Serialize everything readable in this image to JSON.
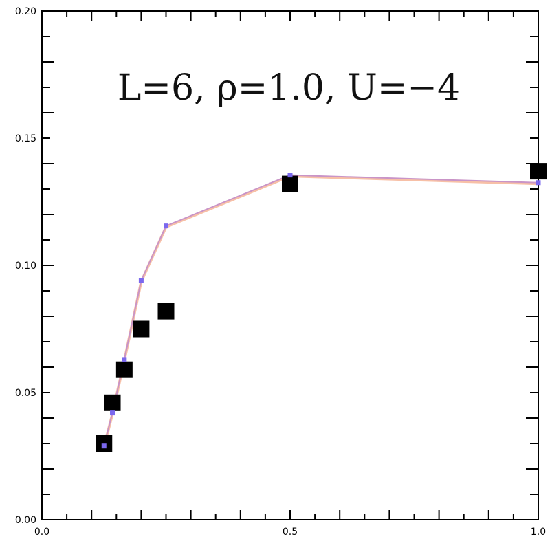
{
  "chart_data": {
    "type": "scatter",
    "title": "L=6,  ρ=1.0,  U=−4",
    "xlabel": "",
    "ylabel": "",
    "xlim": [
      0.0,
      1.0
    ],
    "ylim": [
      0.0,
      0.2
    ],
    "x_ticks": [
      "0.0",
      "0.5",
      "1.0"
    ],
    "y_ticks": [
      "0.00",
      "0.05",
      "0.10",
      "0.15",
      "0.20"
    ],
    "grid": false,
    "series": [
      {
        "marker": "square-large",
        "color": "#000000",
        "points": [
          {
            "x": 0.125,
            "y": 0.03
          },
          {
            "x": 0.142,
            "y": 0.046
          },
          {
            "x": 0.166,
            "y": 0.059
          },
          {
            "x": 0.2,
            "y": 0.075
          },
          {
            "x": 0.25,
            "y": 0.082
          },
          {
            "x": 0.5,
            "y": 0.132
          },
          {
            "x": 1.0,
            "y": 0.137
          }
        ]
      },
      {
        "marker": "square-small-line",
        "color": "#7b68ee",
        "line_colors": [
          "#f4a582",
          "#c994c7"
        ],
        "points": [
          {
            "x": 0.125,
            "y": 0.029
          },
          {
            "x": 0.142,
            "y": 0.042
          },
          {
            "x": 0.166,
            "y": 0.063
          },
          {
            "x": 0.2,
            "y": 0.094
          },
          {
            "x": 0.25,
            "y": 0.1155
          },
          {
            "x": 0.5,
            "y": 0.1355
          },
          {
            "x": 1.0,
            "y": 0.1325
          }
        ]
      }
    ]
  }
}
